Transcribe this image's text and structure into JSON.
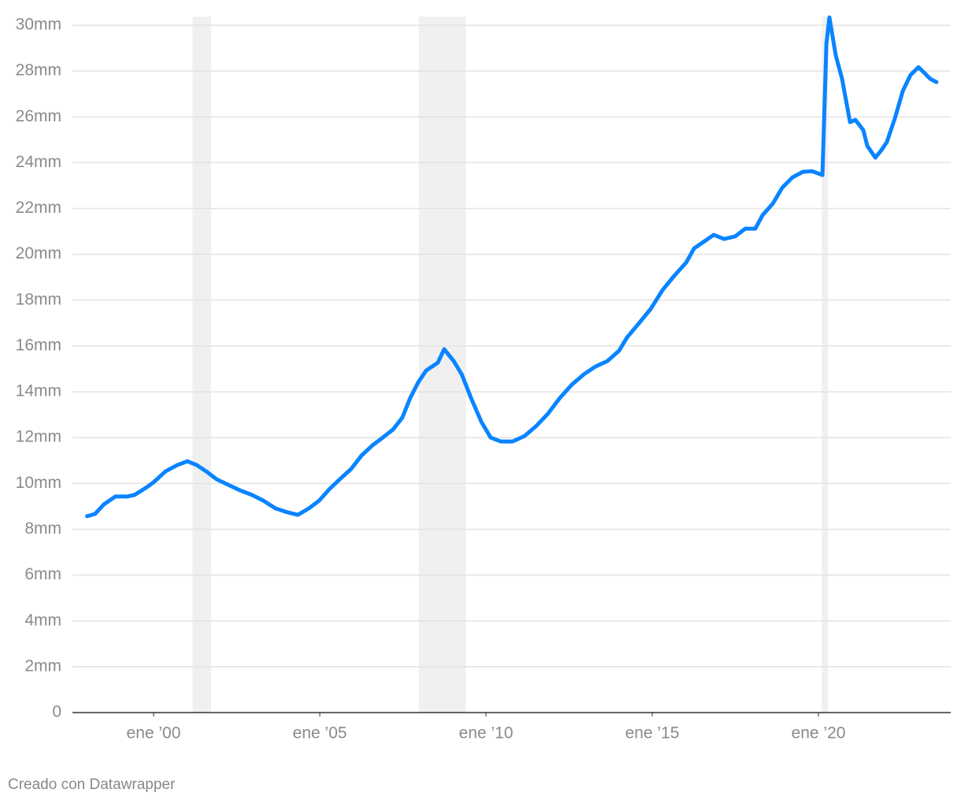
{
  "chart_data": {
    "type": "line",
    "x": [
      1998.0,
      1998.24,
      1998.5,
      1998.85,
      1999.2,
      1999.43,
      1999.8,
      2000.0,
      2000.36,
      2000.71,
      2001.02,
      2001.3,
      2001.58,
      2001.9,
      2002.25,
      2002.6,
      2002.96,
      2003.3,
      2003.67,
      2004.03,
      2004.34,
      2004.67,
      2004.98,
      2005.3,
      2005.6,
      2005.94,
      2006.25,
      2006.58,
      2006.89,
      2007.2,
      2007.48,
      2007.72,
      2007.96,
      2008.2,
      2008.55,
      2008.74,
      2009.03,
      2009.27,
      2009.55,
      2009.86,
      2010.14,
      2010.45,
      2010.8,
      2011.16,
      2011.52,
      2011.86,
      2012.22,
      2012.58,
      2012.94,
      2013.29,
      2013.65,
      2014.0,
      2014.24,
      2014.6,
      2014.95,
      2015.31,
      2015.66,
      2016.02,
      2016.26,
      2016.54,
      2016.85,
      2017.16,
      2017.49,
      2017.8,
      2018.1,
      2018.32,
      2018.63,
      2018.91,
      2019.22,
      2019.53,
      2019.81,
      2020.12,
      2020.24,
      2020.33,
      2020.52,
      2020.71,
      2020.95,
      2021.11,
      2021.35,
      2021.47,
      2021.71,
      2021.9,
      2022.06,
      2022.3,
      2022.54,
      2022.77,
      2023.01,
      2023.18,
      2023.36,
      2023.55
    ],
    "series": [
      {
        "color": "#0a84ff",
        "values": [
          8.57,
          8.67,
          9.08,
          9.43,
          9.43,
          9.5,
          9.84,
          10.05,
          10.53,
          10.8,
          10.97,
          10.8,
          10.53,
          10.18,
          9.94,
          9.7,
          9.5,
          9.25,
          8.91,
          8.74,
          8.63,
          8.91,
          9.25,
          9.77,
          10.18,
          10.63,
          11.21,
          11.66,
          12.0,
          12.35,
          12.87,
          13.73,
          14.41,
          14.93,
          15.27,
          15.86,
          15.34,
          14.76,
          13.73,
          12.69,
          12.0,
          11.83,
          11.83,
          12.07,
          12.52,
          13.04,
          13.73,
          14.31,
          14.76,
          15.1,
          15.34,
          15.79,
          16.37,
          16.99,
          17.61,
          18.44,
          19.06,
          19.64,
          20.26,
          20.54,
          20.85,
          20.67,
          20.78,
          21.12,
          21.12,
          21.71,
          22.22,
          22.91,
          23.36,
          23.6,
          23.63,
          23.46,
          29.2,
          30.34,
          28.69,
          27.66,
          25.77,
          25.87,
          25.42,
          24.73,
          24.22,
          24.56,
          24.91,
          25.94,
          27.14,
          27.83,
          28.17,
          27.93,
          27.66,
          27.52
        ]
      }
    ],
    "shaded_periods": [
      [
        2001.17,
        2001.73
      ],
      [
        2007.98,
        2009.4
      ],
      [
        2020.1,
        2020.29
      ]
    ],
    "xlim": [
      1997.56,
      2023.98
    ],
    "xticks": [
      {
        "value": 2000,
        "label": "ene ’00"
      },
      {
        "value": 2005,
        "label": "ene ’05"
      },
      {
        "value": 2010,
        "label": "ene ’10"
      },
      {
        "value": 2015,
        "label": "ene ’15"
      },
      {
        "value": 2020,
        "label": "ene ’20"
      }
    ],
    "ylim": [
      0,
      30
    ],
    "yticks": [
      0,
      {
        "value": 2,
        "label": "2mm"
      },
      {
        "value": 4,
        "label": "4mm"
      },
      {
        "value": 6,
        "label": "6mm"
      },
      {
        "value": 8,
        "label": "8mm"
      },
      {
        "value": 10,
        "label": "10mm"
      },
      {
        "value": 12,
        "label": "12mm"
      },
      {
        "value": 14,
        "label": "14mm"
      },
      {
        "value": 16,
        "label": "16mm"
      },
      {
        "value": 18,
        "label": "18mm"
      },
      {
        "value": 20,
        "label": "20mm"
      },
      {
        "value": 22,
        "label": "22mm"
      },
      {
        "value": 24,
        "label": "24mm"
      },
      {
        "value": 26,
        "label": "26mm"
      },
      {
        "value": 28,
        "label": "28mm"
      },
      {
        "value": 30,
        "label": "30mm"
      }
    ],
    "grid": true,
    "credit": "Creado con Datawrapper"
  }
}
